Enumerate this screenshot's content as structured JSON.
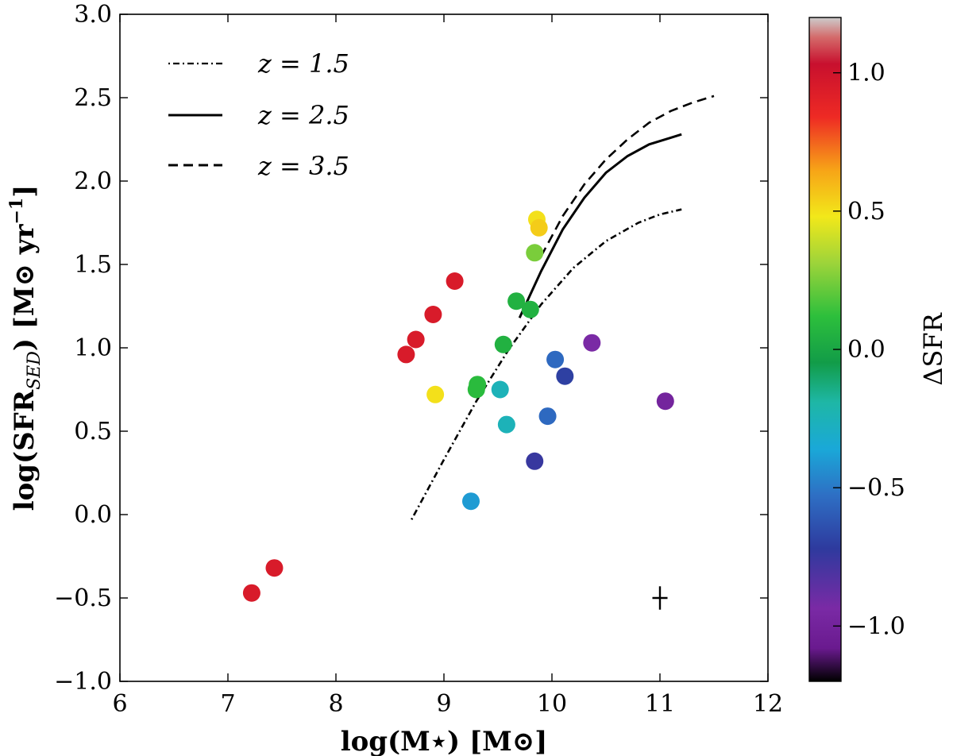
{
  "chart_data": {
    "type": "scatter",
    "title": "",
    "xlabel": "log(M⋆) [M⊙]",
    "ylabel": "log(SFRSED) [M⊙ yr⁻¹]",
    "ylabel_main": "log(SFR",
    "ylabel_sub": "SED",
    "ylabel_tail": ") [M⊙ yr",
    "ylabel_sup": "−1",
    "ylabel_end": "]",
    "xlim": [
      6,
      12
    ],
    "ylim": [
      -1.0,
      3.0
    ],
    "xticks": [
      6,
      7,
      8,
      9,
      10,
      11,
      12
    ],
    "xtick_labels": [
      "6",
      "7",
      "8",
      "9",
      "10",
      "11",
      "12"
    ],
    "yticks": [
      -1.0,
      -0.5,
      0.0,
      0.5,
      1.0,
      1.5,
      2.0,
      2.5,
      3.0
    ],
    "ytick_labels": [
      "−1.0",
      "−0.5",
      "0.0",
      "0.5",
      "1.0",
      "1.5",
      "2.0",
      "2.5",
      "3.0"
    ],
    "grid": false,
    "legend_position": "top-left",
    "legend": [
      {
        "label": "z = 1.5",
        "style": "dotted"
      },
      {
        "label": "z = 2.5",
        "style": "solid"
      },
      {
        "label": "z = 3.5",
        "style": "dashed"
      }
    ],
    "colorbar": {
      "label": "ΔSFR",
      "range": [
        -1.2,
        1.2
      ],
      "ticks": [
        -1.0,
        -0.5,
        0.0,
        0.5,
        1.0
      ],
      "tick_labels": [
        "−1.0",
        "−0.5",
        "0.0",
        "0.5",
        "1.0"
      ],
      "colormap": "spectral"
    },
    "series": [
      {
        "name": "galaxies",
        "kind": "scatter",
        "points": [
          {
            "x": 7.22,
            "y": -0.47,
            "dsfr": 0.95
          },
          {
            "x": 7.43,
            "y": -0.32,
            "dsfr": 0.95
          },
          {
            "x": 8.65,
            "y": 0.96,
            "dsfr": 0.95
          },
          {
            "x": 8.74,
            "y": 1.05,
            "dsfr": 0.95
          },
          {
            "x": 8.9,
            "y": 1.2,
            "dsfr": 0.95
          },
          {
            "x": 9.1,
            "y": 1.4,
            "dsfr": 0.95
          },
          {
            "x": 8.92,
            "y": 0.72,
            "dsfr": 0.5
          },
          {
            "x": 9.3,
            "y": 0.75,
            "dsfr": 0.1
          },
          {
            "x": 9.31,
            "y": 0.78,
            "dsfr": 0.1
          },
          {
            "x": 9.25,
            "y": 0.08,
            "dsfr": -0.4
          },
          {
            "x": 9.52,
            "y": 0.75,
            "dsfr": -0.25
          },
          {
            "x": 9.58,
            "y": 0.54,
            "dsfr": -0.25
          },
          {
            "x": 9.55,
            "y": 1.02,
            "dsfr": 0.05
          },
          {
            "x": 9.67,
            "y": 1.28,
            "dsfr": 0.05
          },
          {
            "x": 9.8,
            "y": 1.23,
            "dsfr": 0.05
          },
          {
            "x": 9.84,
            "y": 1.57,
            "dsfr": 0.25
          },
          {
            "x": 9.86,
            "y": 1.77,
            "dsfr": 0.5
          },
          {
            "x": 9.88,
            "y": 1.72,
            "dsfr": 0.55
          },
          {
            "x": 9.84,
            "y": 0.32,
            "dsfr": -0.75
          },
          {
            "x": 9.96,
            "y": 0.59,
            "dsfr": -0.55
          },
          {
            "x": 10.03,
            "y": 0.93,
            "dsfr": -0.55
          },
          {
            "x": 10.12,
            "y": 0.83,
            "dsfr": -0.7
          },
          {
            "x": 10.37,
            "y": 1.03,
            "dsfr": -0.95
          },
          {
            "x": 11.05,
            "y": 0.68,
            "dsfr": -1.0
          }
        ]
      },
      {
        "name": "z = 1.5",
        "kind": "line",
        "style": "dotted",
        "x": [
          8.7,
          9.0,
          9.3,
          9.6,
          9.9,
          10.2,
          10.5,
          10.8,
          11.0,
          11.2
        ],
        "y": [
          -0.03,
          0.33,
          0.68,
          0.99,
          1.26,
          1.48,
          1.64,
          1.75,
          1.8,
          1.83
        ]
      },
      {
        "name": "z = 2.5",
        "kind": "line",
        "style": "solid",
        "x": [
          9.7,
          9.9,
          10.1,
          10.3,
          10.5,
          10.7,
          10.9,
          11.1,
          11.2
        ],
        "y": [
          1.18,
          1.46,
          1.71,
          1.9,
          2.05,
          2.15,
          2.22,
          2.26,
          2.28
        ]
      },
      {
        "name": "z = 3.5",
        "kind": "line",
        "style": "dashed",
        "x": [
          9.9,
          10.1,
          10.3,
          10.5,
          10.7,
          10.9,
          11.1,
          11.3,
          11.5
        ],
        "y": [
          1.55,
          1.79,
          1.98,
          2.13,
          2.25,
          2.35,
          2.42,
          2.47,
          2.51
        ]
      }
    ],
    "error_bar": {
      "x": 11.0,
      "y": -0.5,
      "xerr": 0.07,
      "yerr": 0.07
    }
  }
}
